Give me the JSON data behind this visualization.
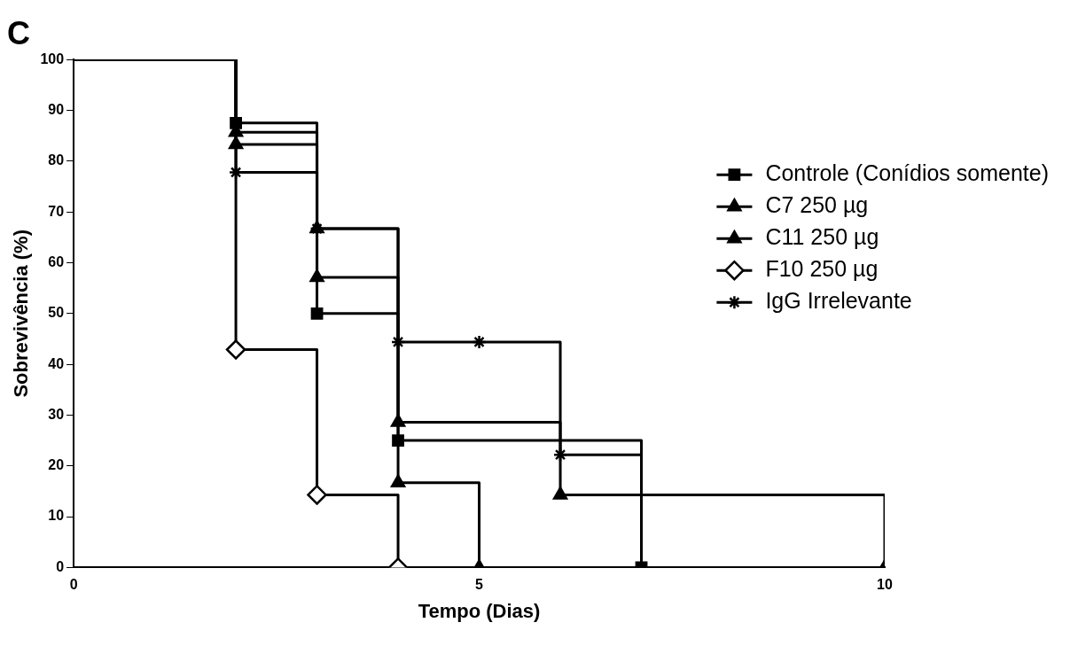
{
  "chart_data": {
    "type": "step",
    "title": "C",
    "xlabel": "Tempo (Dias)",
    "ylabel": "Sobrevivência (%)",
    "xlim": [
      0,
      10
    ],
    "xticks": [
      0,
      5,
      10
    ],
    "ylim": [
      0,
      100
    ],
    "yticks": [
      0,
      10,
      20,
      30,
      40,
      50,
      60,
      70,
      80,
      90,
      100
    ],
    "grid": false,
    "legend": "top right",
    "series": [
      {
        "name": "Controle (Conídios somente)",
        "color": "#000000",
        "marker": "square",
        "x": [
          0,
          2,
          3,
          4,
          7
        ],
        "values": [
          100,
          87.5,
          50,
          25,
          0
        ]
      },
      {
        "name": "C7 250 µg",
        "color": "#000000",
        "marker": "triangle",
        "x": [
          0,
          2,
          3,
          4,
          5
        ],
        "values": [
          100,
          83.3,
          66.7,
          16.7,
          0
        ]
      },
      {
        "name": "C11 250 µg",
        "color": "#000000",
        "marker": "triangle",
        "x": [
          0,
          2,
          3,
          4,
          6,
          10
        ],
        "values": [
          100,
          85.7,
          57.1,
          28.6,
          14.3,
          0
        ]
      },
      {
        "name": "F10 250 µg",
        "color": "#000000",
        "marker": "diamond",
        "x": [
          0,
          2,
          3,
          4
        ],
        "values": [
          100,
          42.9,
          14.3,
          0
        ]
      },
      {
        "name": "IgG Irrelevante",
        "color": "#000000",
        "marker": "cross",
        "x": [
          0,
          2,
          3,
          4,
          5,
          6,
          7
        ],
        "values": [
          100,
          77.8,
          66.7,
          44.4,
          44.4,
          22.2,
          0
        ]
      }
    ]
  }
}
